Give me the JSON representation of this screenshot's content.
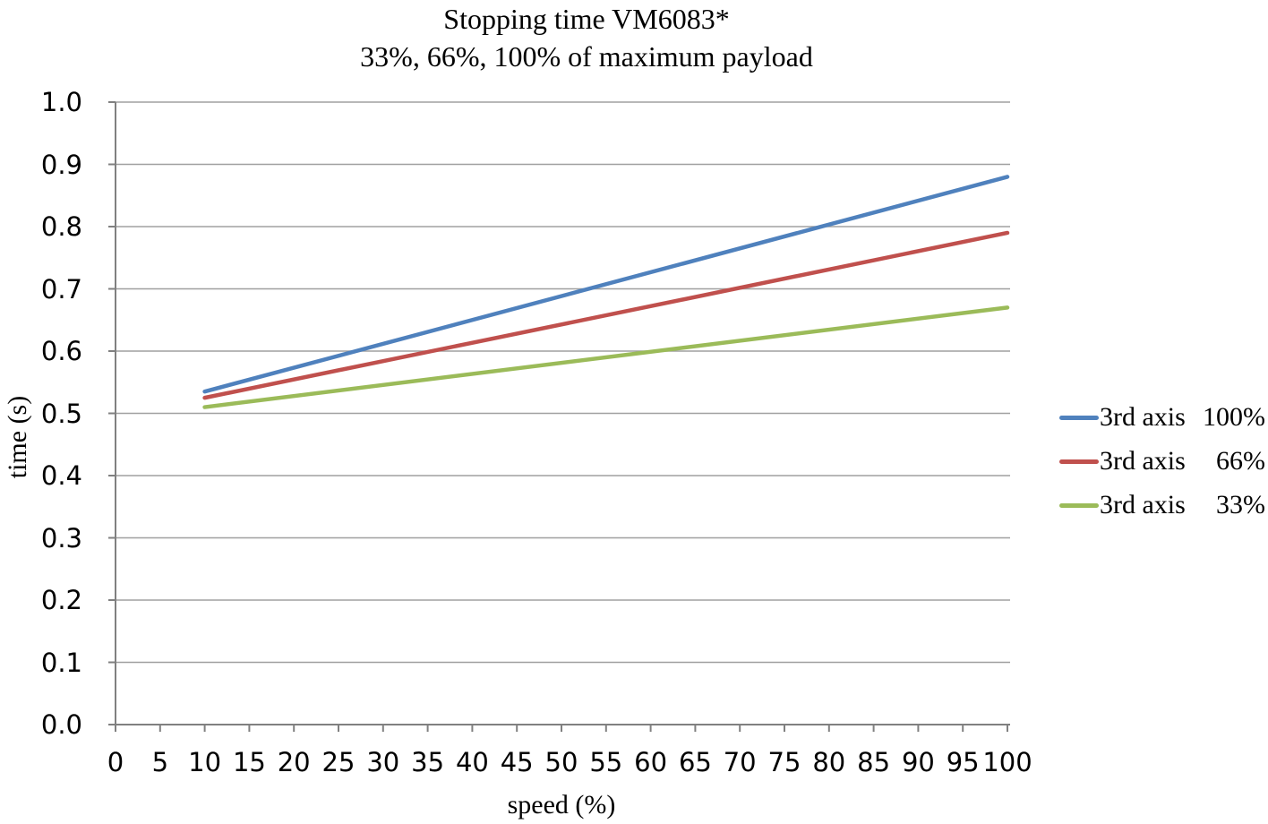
{
  "chart_data": {
    "type": "line",
    "title": "Stopping time VM6083*",
    "subtitle": "33%, 66%, 100% of maximum payload",
    "xlabel": "speed (%)",
    "ylabel": "time (s)",
    "xlim": [
      0,
      100
    ],
    "ylim": [
      0.0,
      1.0
    ],
    "x_ticks": [
      0,
      5,
      10,
      15,
      20,
      25,
      30,
      35,
      40,
      45,
      50,
      55,
      60,
      65,
      70,
      75,
      80,
      85,
      90,
      95,
      100
    ],
    "y_ticks": [
      0.0,
      0.1,
      0.2,
      0.3,
      0.4,
      0.5,
      0.6,
      0.7,
      0.8,
      0.9,
      1.0
    ],
    "y_tick_decimals": 1,
    "grid": "horizontal-only",
    "legend_position": "right",
    "gridline_color": "#A0A0A0",
    "axis_color": "#808080",
    "background_color": "#FFFFFF",
    "series": [
      {
        "name": "3rd axis 100%",
        "legend_label": "3rd axis",
        "legend_value": "100%",
        "color": "#4F81BD",
        "x": [
          10,
          100
        ],
        "values": [
          0.535,
          0.88
        ]
      },
      {
        "name": "3rd axis 66%",
        "legend_label": "3rd axis",
        "legend_value": "66%",
        "color": "#C0504D",
        "x": [
          10,
          100
        ],
        "values": [
          0.525,
          0.79
        ]
      },
      {
        "name": "3rd axis 33%",
        "legend_label": "3rd axis",
        "legend_value": "33%",
        "color": "#9BBB59",
        "x": [
          10,
          100
        ],
        "values": [
          0.51,
          0.67
        ]
      }
    ]
  }
}
